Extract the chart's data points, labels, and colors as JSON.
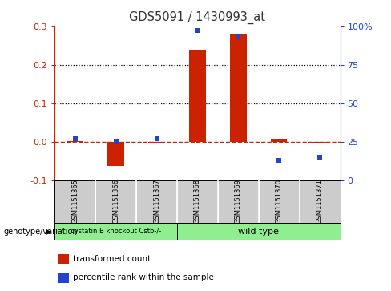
{
  "title": "GDS5091 / 1430993_at",
  "samples": [
    "GSM1151365",
    "GSM1151366",
    "GSM1151367",
    "GSM1151368",
    "GSM1151369",
    "GSM1151370",
    "GSM1151371"
  ],
  "red_values": [
    0.003,
    -0.063,
    -0.003,
    0.24,
    0.278,
    0.008,
    -0.003
  ],
  "blue_pct": [
    27,
    25,
    27,
    97,
    93,
    13,
    15
  ],
  "ylim": [
    -0.1,
    0.3
  ],
  "right_ylim": [
    0,
    100
  ],
  "yticks_left": [
    -0.1,
    0.0,
    0.1,
    0.2,
    0.3
  ],
  "yticks_right": [
    0,
    25,
    50,
    75,
    100
  ],
  "dotted_lines": [
    0.1,
    0.2
  ],
  "red_color": "#cc2200",
  "blue_color": "#2244cc",
  "bar_width": 0.4,
  "group1_label": "cystatin B knockout Cstb-/-",
  "group2_label": "wild type",
  "group1_indices": [
    0,
    1,
    2
  ],
  "group2_indices": [
    3,
    4,
    5,
    6
  ],
  "group1_color": "#90ee90",
  "group2_color": "#90ee90",
  "legend1_label": "transformed count",
  "legend2_label": "percentile rank within the sample",
  "genotype_label": "genotype/variation",
  "title_color": "#333333",
  "right_axis_color": "#2244cc",
  "left_axis_color": "#cc2200",
  "box_color": "#cccccc",
  "blue_square_size": 5
}
